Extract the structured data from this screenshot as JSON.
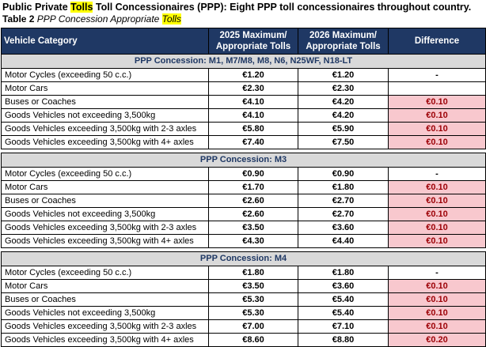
{
  "page": {
    "title": {
      "prefix": "Public Private ",
      "highlight": "Tolls",
      "suffix": " Toll Concessionaires (PPP): Eight PPP toll concessionaires throughout country."
    },
    "subtitle": {
      "label": "Table 2 ",
      "italic": "PPP Concession Appropriate ",
      "highlight": "Tolls"
    }
  },
  "colors": {
    "header_bg": "#1F3864",
    "header_text": "#FFFFFF",
    "section_bg": "#D9D9D9",
    "section_text": "#1F3864",
    "diff_highlight_bg": "#F8C8CE",
    "diff_highlight_text": "#9C0006",
    "title_highlight": "#FFFF00"
  },
  "table": {
    "headers": [
      "Vehicle Category",
      "2025 Maximum/\nAppropriate Tolls",
      "2026 Maximum/\nAppropriate Tolls",
      "Difference"
    ],
    "sections": [
      {
        "label": "PPP Concession:  M1, M7/M8, M8, N6, N25WF, N18-LT",
        "rows": [
          {
            "category": "Motor Cycles (exceeding 50 c.c.)",
            "toll_2025": "€1.20",
            "toll_2026": "€1.20",
            "difference": "-",
            "diff_highlighted": false
          },
          {
            "category": "Motor Cars",
            "toll_2025": "€2.30",
            "toll_2026": "€2.30",
            "difference": "",
            "diff_highlighted": false
          },
          {
            "category": "Buses or Coaches",
            "toll_2025": "€4.10",
            "toll_2026": "€4.20",
            "difference": "€0.10",
            "diff_highlighted": true
          },
          {
            "category": "Goods Vehicles not exceeding 3,500kg",
            "toll_2025": "€4.10",
            "toll_2026": "€4.20",
            "difference": "€0.10",
            "diff_highlighted": true
          },
          {
            "category": "Goods Vehicles exceeding 3,500kg with 2-3 axles",
            "toll_2025": "€5.80",
            "toll_2026": "€5.90",
            "difference": "€0.10",
            "diff_highlighted": true
          },
          {
            "category": "Goods Vehicles exceeding 3,500kg with 4+ axles",
            "toll_2025": "€7.40",
            "toll_2026": "€7.50",
            "difference": "€0.10",
            "diff_highlighted": true
          }
        ]
      },
      {
        "label": "PPP Concession:  M3",
        "rows": [
          {
            "category": "Motor Cycles (exceeding 50 c.c.)",
            "toll_2025": "€0.90",
            "toll_2026": "€0.90",
            "difference": "-",
            "diff_highlighted": false
          },
          {
            "category": "Motor Cars",
            "toll_2025": "€1.70",
            "toll_2026": "€1.80",
            "difference": "€0.10",
            "diff_highlighted": true
          },
          {
            "category": "Buses or Coaches",
            "toll_2025": "€2.60",
            "toll_2026": "€2.70",
            "difference": "€0.10",
            "diff_highlighted": true
          },
          {
            "category": "Goods Vehicles not exceeding 3,500kg",
            "toll_2025": "€2.60",
            "toll_2026": "€2.70",
            "difference": "€0.10",
            "diff_highlighted": true
          },
          {
            "category": "Goods Vehicles exceeding 3,500kg with 2-3 axles",
            "toll_2025": "€3.50",
            "toll_2026": "€3.60",
            "difference": "€0.10",
            "diff_highlighted": true
          },
          {
            "category": "Goods Vehicles exceeding 3,500kg with 4+ axles",
            "toll_2025": "€4.30",
            "toll_2026": "€4.40",
            "difference": "€0.10",
            "diff_highlighted": true
          }
        ]
      },
      {
        "label": "PPP Concession:  M4",
        "rows": [
          {
            "category": "Motor Cycles (exceeding 50 c.c.)",
            "toll_2025": "€1.80",
            "toll_2026": "€1.80",
            "difference": "-",
            "diff_highlighted": false
          },
          {
            "category": "Motor Cars",
            "toll_2025": "€3.50",
            "toll_2026": "€3.60",
            "difference": "€0.10",
            "diff_highlighted": true
          },
          {
            "category": "Buses or Coaches",
            "toll_2025": "€5.30",
            "toll_2026": "€5.40",
            "difference": "€0.10",
            "diff_highlighted": true
          },
          {
            "category": "Goods Vehicles not exceeding 3,500kg",
            "toll_2025": "€5.30",
            "toll_2026": "€5.40",
            "difference": "€0.10",
            "diff_highlighted": true
          },
          {
            "category": "Goods Vehicles exceeding 3,500kg with 2-3 axles",
            "toll_2025": "€7.00",
            "toll_2026": "€7.10",
            "difference": "€0.10",
            "diff_highlighted": true
          },
          {
            "category": "Goods Vehicles exceeding 3,500kg with 4+ axles",
            "toll_2025": "€8.60",
            "toll_2026": "€8.80",
            "difference": "€0.20",
            "diff_highlighted": true
          }
        ]
      }
    ]
  }
}
